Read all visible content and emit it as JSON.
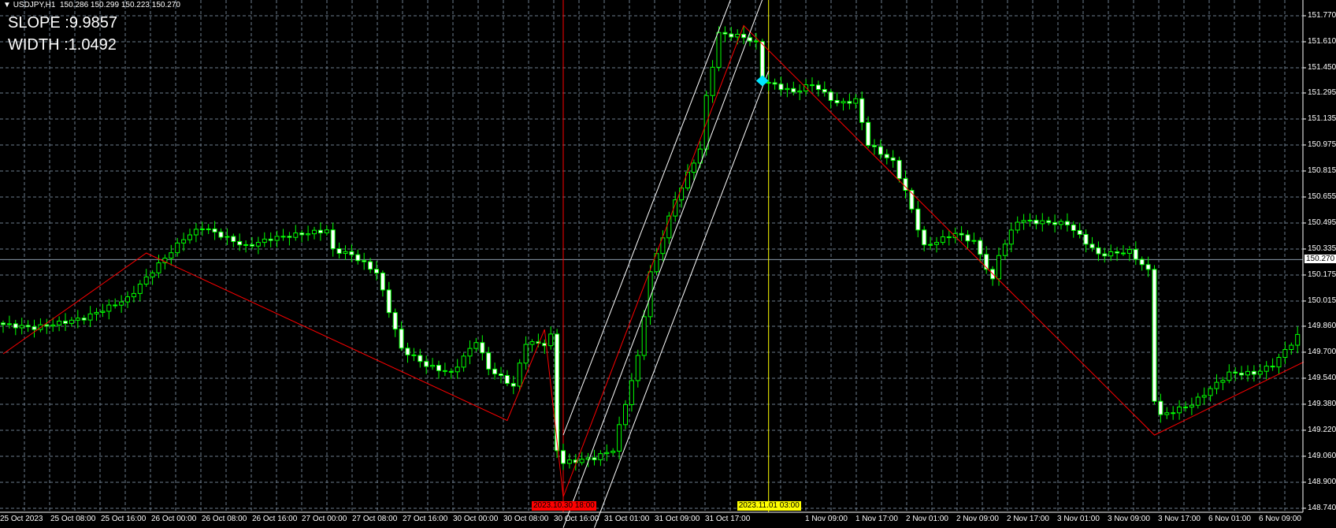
{
  "header": {
    "symbol": "USDJPY,H1",
    "ohlc": "150.286 150.299 150.223 150.270",
    "menu_icon": "triangle-down-icon"
  },
  "indicator": {
    "slope_label": "SLOPE :9.9857",
    "width_label": "WIDTH :1.0492"
  },
  "colors": {
    "background": "#000000",
    "candle_outline": "#00ff00",
    "bear_fill": "#ffffff",
    "bull_fill": "#000000",
    "zigzag": "#ff0000",
    "channel": "#ffffff",
    "grid": "#6b7b8c",
    "bid_line": "#8a9aaa",
    "vline_red": "#ff0000",
    "vline_yellow": "#ffff00",
    "marker_cyan": "#00e5ff"
  },
  "chart_data": {
    "type": "candlestick",
    "symbol": "USDJPY",
    "timeframe": "H1",
    "trading_days": [
      "2023.10.25",
      "2023.10.26",
      "2023.10.27",
      "2023.10.30",
      "2023.10.31",
      "2023.11.01",
      "2023.11.02",
      "2023.11.03",
      "2023.11.06"
    ],
    "ylim": [
      148.74,
      151.77
    ],
    "price_ticks": [
      "151.770",
      "151.610",
      "151.450",
      "151.295",
      "151.135",
      "150.975",
      "150.815",
      "150.655",
      "150.495",
      "150.335",
      "150.175",
      "150.015",
      "149.860",
      "149.700",
      "149.540",
      "149.380",
      "149.220",
      "149.060",
      "148.900",
      "148.740"
    ],
    "time_ticks": [
      "25 Oct 2023",
      "25 Oct 08:00",
      "25 Oct 16:00",
      "26 Oct 00:00",
      "26 Oct 08:00",
      "26 Oct 16:00",
      "27 Oct 00:00",
      "27 Oct 08:00",
      "27 Oct 16:00",
      "30 Oct 00:00",
      "30 Oct 08:00",
      "30 Oct 16:00",
      "31 Oct 01:00",
      "31 Oct 09:00",
      "31 Oct 17:00",
      null,
      "1 Nov 09:00",
      "1 Nov 17:00",
      "2 Nov 01:00",
      "2 Nov 09:00",
      "2 Nov 17:00",
      "3 Nov 01:00",
      "3 Nov 09:00",
      "3 Nov 17:00",
      "6 Nov 01:00",
      "6 Nov 09:00"
    ],
    "bid": {
      "price": 150.27,
      "label": "150.270"
    },
    "close_path": [
      [
        "2023.10.25 00:00",
        149.87
      ],
      [
        "2023.10.25 05:00",
        149.85
      ],
      [
        "2023.10.25 13:00",
        149.91
      ],
      [
        "2023.10.25 20:00",
        150.03
      ],
      [
        "2023.10.26 00:00",
        150.2
      ],
      [
        "2023.10.26 05:00",
        150.4
      ],
      [
        "2023.10.26 08:00",
        150.47
      ],
      [
        "2023.10.26 15:00",
        150.35
      ],
      [
        "2023.10.26 19:00",
        150.4
      ],
      [
        "2023.10.27 04:00",
        150.45
      ],
      [
        "2023.10.27 05:00",
        150.33
      ],
      [
        "2023.10.27 08:00",
        150.3
      ],
      [
        "2023.10.27 12:00",
        150.19
      ],
      [
        "2023.10.27 16:00",
        149.72
      ],
      [
        "2023.10.27 20:00",
        149.62
      ],
      [
        "2023.10.30 00:00",
        149.57
      ],
      [
        "2023.10.30 04:00",
        149.77
      ],
      [
        "2023.10.30 06:00",
        149.6
      ],
      [
        "2023.10.30 10:00",
        149.49
      ],
      [
        "2023.10.30 12:00",
        149.76
      ],
      [
        "2023.10.30 15:00",
        149.75
      ],
      [
        "2023.10.30 16:00",
        149.8
      ],
      [
        "2023.10.30 17:00",
        149.1
      ],
      [
        "2023.10.30 18:00",
        149.02
      ],
      [
        "2023.10.30 23:00",
        149.05
      ],
      [
        "2023.10.31 02:00",
        149.1
      ],
      [
        "2023.10.31 06:00",
        149.67
      ],
      [
        "2023.10.31 08:00",
        150.19
      ],
      [
        "2023.10.31 12:00",
        150.64
      ],
      [
        "2023.10.31 16:00",
        150.95
      ],
      [
        "2023.10.31 17:00",
        151.27
      ],
      [
        "2023.10.31 19:00",
        151.66
      ],
      [
        "2023.10.31 23:00",
        151.64
      ],
      [
        "2023.11.01 01:00",
        151.6
      ],
      [
        "2023.11.01 02:00",
        151.37
      ],
      [
        "2023.11.01 07:00",
        151.3
      ],
      [
        "2023.11.01 10:00",
        151.35
      ],
      [
        "2023.11.01 14:00",
        151.23
      ],
      [
        "2023.11.01 17:00",
        151.25
      ],
      [
        "2023.11.01 19:00",
        150.98
      ],
      [
        "2023.11.01 23:00",
        150.87
      ],
      [
        "2023.11.02 01:00",
        150.69
      ],
      [
        "2023.11.02 04:00",
        150.35
      ],
      [
        "2023.11.02 09:00",
        150.43
      ],
      [
        "2023.11.02 12:00",
        150.38
      ],
      [
        "2023.11.02 15:00",
        150.14
      ],
      [
        "2023.11.02 16:00",
        150.3
      ],
      [
        "2023.11.02 19:00",
        150.51
      ],
      [
        "2023.11.03 03:00",
        150.49
      ],
      [
        "2023.11.03 08:00",
        150.3
      ],
      [
        "2023.11.03 13:00",
        150.32
      ],
      [
        "2023.11.03 16:00",
        150.2
      ],
      [
        "2023.11.03 17:00",
        149.41
      ],
      [
        "2023.11.03 18:00",
        149.31
      ],
      [
        "2023.11.03 23:00",
        149.38
      ],
      [
        "2023.11.06 05:00",
        149.57
      ],
      [
        "2023.11.06 09:00",
        149.57
      ],
      [
        "2023.11.06 12:00",
        149.62
      ],
      [
        "2023.11.06 16:00",
        149.8
      ]
    ],
    "zigzag": [
      [
        "2023.10.25 00:00",
        149.69
      ],
      [
        "2023.10.25 23:00",
        150.31
      ],
      [
        "2023.10.30 09:00",
        149.28
      ],
      [
        "2023.10.30 15:00",
        149.84
      ],
      [
        "2023.10.30 18:00",
        148.81
      ],
      [
        "2023.10.31 23:00",
        151.71
      ],
      [
        "2023.11.03 17:00",
        149.19
      ],
      [
        "2023.11.06 17:00",
        149.64
      ]
    ],
    "channel": [
      [
        [
          "2023.10.30 18:00",
          149.19
        ],
        [
          "2023.10.31 21:00",
          151.88
        ]
      ],
      [
        [
          "2023.10.30 18:00",
          148.62
        ],
        [
          "2023.11.01 02:00",
          151.87
        ]
      ],
      [
        [
          "2023.10.30 23:00",
          148.62
        ],
        [
          "2023.11.01 03:00",
          151.43
        ]
      ]
    ],
    "vlines": [
      {
        "time": "2023.10.30 18:00",
        "label": "2023.10.30 18:00",
        "color": "#ff0000",
        "text_color": "#000000"
      },
      {
        "time": "2023.11.01 03:00",
        "label": "2023.11.01 03:00",
        "color": "#ffff00",
        "text_color": "#000000"
      }
    ],
    "marker": {
      "time": "2023.11.01 02:00",
      "price": 151.37,
      "shape": "diamond"
    }
  }
}
